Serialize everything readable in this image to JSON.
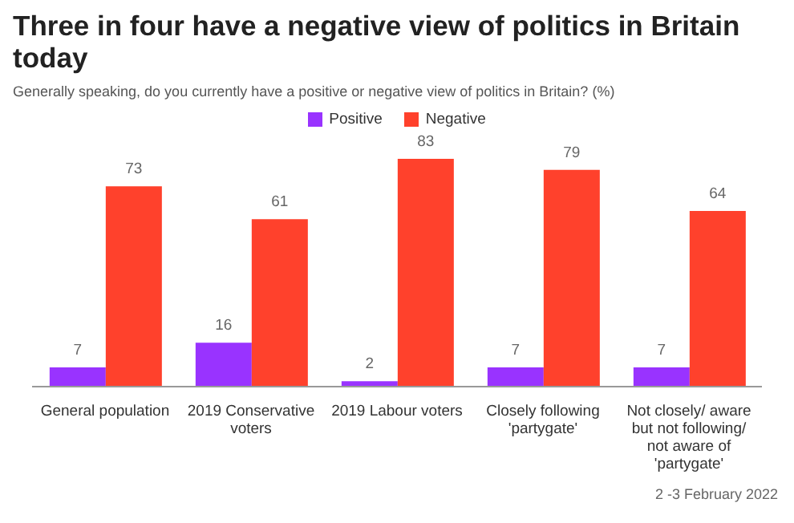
{
  "chart_data": {
    "type": "bar",
    "title": "Three in four have a negative view of politics in Britain today",
    "subtitle": "Generally speaking, do you currently have a positive or negative view of politics in Britain? (%)",
    "categories": [
      "General population",
      "2019 Conservative voters",
      "2019 Labour voters",
      "Closely following 'partygate'",
      "Not closely/ aware but not following/ not aware of 'partygate'"
    ],
    "series": [
      {
        "name": "Positive",
        "color": "#9933ff",
        "values": [
          7,
          16,
          2,
          7,
          7
        ]
      },
      {
        "name": "Negative",
        "color": "#ff412c",
        "values": [
          73,
          61,
          83,
          79,
          64
        ]
      }
    ],
    "data_labels": true,
    "legend": "top",
    "annotations": [
      "2 -3 February 2022"
    ]
  }
}
